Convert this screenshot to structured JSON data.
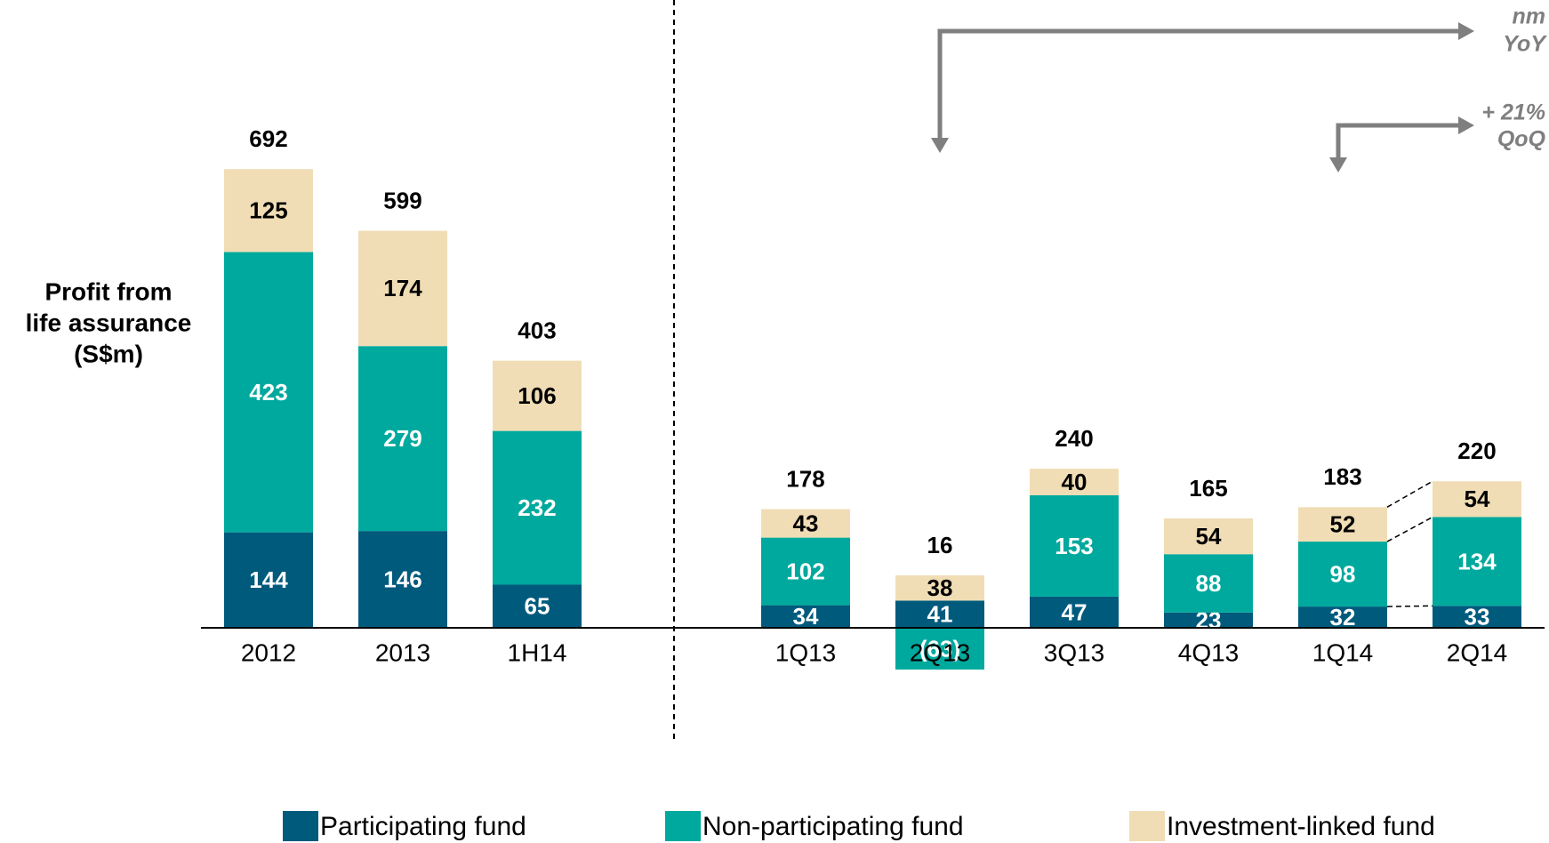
{
  "chart_data": {
    "type": "stacked_bar",
    "ylabel_lines": [
      "Profit from",
      "life assurance",
      "(S$m)"
    ],
    "categories": [
      "2012",
      "2013",
      "1H14",
      "1Q13",
      "2Q13",
      "3Q13",
      "4Q13",
      "1Q14",
      "2Q14"
    ],
    "series": [
      {
        "name": "Participating fund",
        "color": "#005a7c",
        "values": [
          144,
          146,
          65,
          34,
          41,
          47,
          23,
          32,
          33
        ]
      },
      {
        "name": "Non-participating fund",
        "color": "#00a99d",
        "values": [
          423,
          279,
          232,
          102,
          -63,
          153,
          88,
          98,
          134
        ],
        "value_labels": [
          "423",
          "279",
          "232",
          "102",
          "(63)",
          "153",
          "88",
          "98",
          "134"
        ]
      },
      {
        "name": "Investment-linked fund",
        "color": "#f0ddb5",
        "values": [
          125,
          174,
          106,
          43,
          38,
          40,
          54,
          52,
          54
        ]
      }
    ],
    "totals": [
      692,
      599,
      403,
      178,
      16,
      240,
      165,
      183,
      220
    ],
    "ylim": [
      -200,
      750
    ],
    "annotations": [
      {
        "lines": [
          "nm",
          "YoY"
        ]
      },
      {
        "lines": [
          "+ 21%",
          "QoQ"
        ]
      }
    ]
  }
}
